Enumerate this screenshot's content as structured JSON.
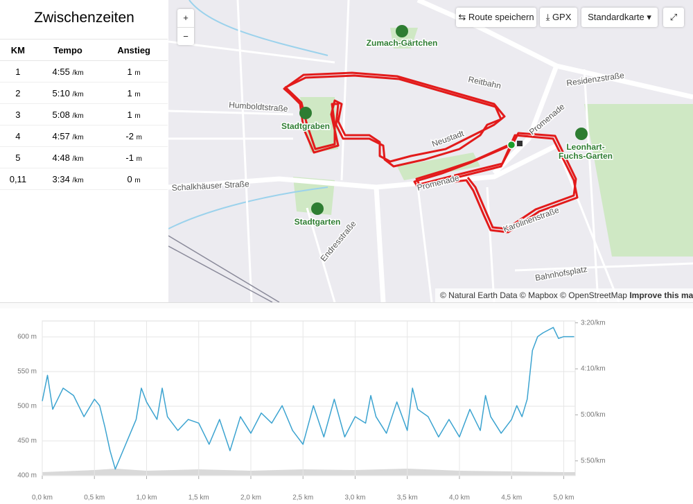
{
  "sidebar": {
    "title": "Zwischenzeiten",
    "table": {
      "headers": [
        "KM",
        "Tempo",
        "Anstieg"
      ],
      "rows": [
        [
          "1",
          "4:55",
          "/km",
          "1",
          "m"
        ],
        [
          "2",
          "5:10",
          "/km",
          "1",
          "m"
        ],
        [
          "3",
          "5:08",
          "/km",
          "1",
          "m"
        ],
        [
          "4",
          "4:57",
          "/km",
          "-2",
          "m"
        ],
        [
          "5",
          "4:48",
          "/km",
          "-1",
          "m"
        ],
        [
          "0,11",
          "3:34",
          "/km",
          "0",
          "m"
        ]
      ]
    }
  },
  "map": {
    "controls": {
      "zoom_in": "+",
      "zoom_out": "−",
      "save": "Route speichern",
      "gpx": "GPX",
      "style": "Standardkarte"
    },
    "labels": [
      "Zumach-Gärtchen",
      "Humboldtstraße",
      "Stadtgraben",
      "Residenzstraße",
      "Reitbahn",
      "Leonhart-",
      "Fuchs-Garten",
      "Schalkhäuser Straße",
      "Stadtgarten",
      "Endresstraße",
      "Promenade",
      "Karolinenstraße",
      "Bahnhofsplatz",
      "Neustadt",
      "Promenade"
    ],
    "attribution": "© Natural Earth Data © Mapbox © OpenStreetMap",
    "improve": "Improve this map"
  },
  "chart_data": {
    "type": "line",
    "xlim": [
      0,
      5.11
    ],
    "xticks": [
      {
        "value": 0,
        "label": "0,0 km"
      },
      {
        "value": 0.5,
        "label": "0,5 km"
      },
      {
        "value": 1,
        "label": "1,0 km"
      },
      {
        "value": 1.5,
        "label": "1,5 km"
      },
      {
        "value": 2,
        "label": "2,0 km"
      },
      {
        "value": 2.5,
        "label": "2,5 km"
      },
      {
        "value": 3,
        "label": "3,0 km"
      },
      {
        "value": 3.5,
        "label": "3,5 km"
      },
      {
        "value": 4,
        "label": "4,0 km"
      },
      {
        "value": 4.5,
        "label": "4,5 km"
      },
      {
        "value": 5,
        "label": "5,0 km"
      }
    ],
    "ylim": [
      400,
      623
    ],
    "yticks": [
      {
        "value": 400,
        "label": "400 m"
      },
      {
        "value": 450,
        "label": "450 m"
      },
      {
        "value": 500,
        "label": "500 m"
      },
      {
        "value": 550,
        "label": "550 m"
      },
      {
        "value": 600,
        "label": "600 m"
      }
    ],
    "y2lim": [
      198,
      366
    ],
    "y2ticks": [
      {
        "value": 200,
        "label": "3:20/km"
      },
      {
        "value": 250,
        "label": "4:10/km"
      },
      {
        "value": 300,
        "label": "5:00/km"
      },
      {
        "value": 350,
        "label": "5:50/km"
      }
    ],
    "grid": true,
    "series": [
      {
        "color": "#3ba3d0",
        "axis": "y2",
        "x": [
          0,
          0.05,
          0.1,
          0.2,
          0.3,
          0.4,
          0.5,
          0.55,
          0.6,
          0.65,
          0.7,
          0.8,
          0.9,
          0.95,
          1.0,
          1.1,
          1.15,
          1.2,
          1.3,
          1.4,
          1.5,
          1.6,
          1.7,
          1.8,
          1.9,
          2.0,
          2.1,
          2.2,
          2.3,
          2.4,
          2.5,
          2.6,
          2.7,
          2.8,
          2.9,
          3.0,
          3.1,
          3.15,
          3.2,
          3.3,
          3.4,
          3.5,
          3.55,
          3.6,
          3.7,
          3.8,
          3.9,
          4.0,
          4.1,
          4.2,
          4.25,
          4.3,
          4.4,
          4.5,
          4.55,
          4.6,
          4.65,
          4.7,
          4.75,
          4.8,
          4.85,
          4.9,
          4.95,
          5.0,
          5.1
        ],
        "values": [
          285,
          257,
          294,
          271,
          279,
          302,
          283,
          290,
          313,
          339,
          359,
          332,
          305,
          271,
          286,
          305,
          271,
          302,
          317,
          305,
          309,
          332,
          305,
          339,
          302,
          320,
          298,
          309,
          290,
          317,
          332,
          290,
          324,
          283,
          324,
          302,
          309,
          279,
          302,
          320,
          286,
          317,
          271,
          294,
          302,
          324,
          305,
          324,
          294,
          317,
          279,
          302,
          320,
          305,
          290,
          302,
          283,
          230,
          215,
          211,
          208,
          205,
          217,
          215,
          215
        ]
      },
      {
        "color": "#d9d9d9",
        "axis": "y",
        "x": [
          0,
          0.5,
          0.7,
          1.0,
          1.5,
          2.0,
          2.5,
          3.0,
          3.5,
          4.0,
          4.5,
          5.0,
          5.11
        ],
        "values": [
          405,
          408,
          410,
          407,
          409,
          407,
          409,
          408,
          410,
          407,
          406,
          405,
          405
        ]
      }
    ]
  }
}
